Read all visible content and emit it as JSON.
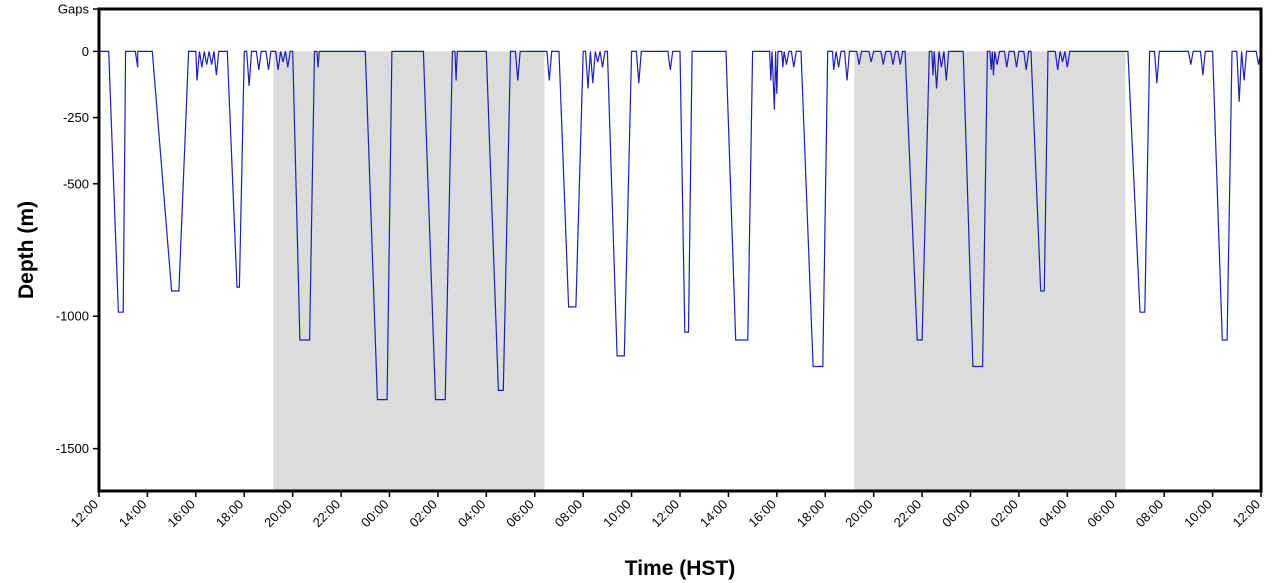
{
  "chart_data": {
    "type": "line",
    "title": "",
    "xlabel": "Time (HST)",
    "ylabel": "Depth (m)",
    "x_unit": "elapsed hours from 12:00 on day 1",
    "xlim": [
      0,
      48
    ],
    "ylim": [
      -1660,
      160
    ],
    "grid": false,
    "legend": "none",
    "x_tick_labels": [
      "12:00",
      "14:00",
      "16:00",
      "18:00",
      "20:00",
      "22:00",
      "00:00",
      "02:00",
      "04:00",
      "06:00",
      "08:00",
      "10:00",
      "12:00",
      "14:00",
      "16:00",
      "18:00",
      "20:00",
      "22:00",
      "00:00",
      "02:00",
      "04:00",
      "06:00",
      "08:00",
      "10:00",
      "12:00"
    ],
    "y_ticks": [
      {
        "label": "Gaps",
        "value": 160
      },
      {
        "label": "0",
        "value": 0
      },
      {
        "label": "-250",
        "value": -250
      },
      {
        "label": "-500",
        "value": -500
      },
      {
        "label": "-1000",
        "value": -1000
      },
      {
        "label": "-1500",
        "value": -1500
      }
    ],
    "night_shading": [
      [
        7.2,
        18.4
      ],
      [
        31.2,
        42.4
      ]
    ],
    "colors": {
      "line": "#1f1fb4",
      "shading": "#dcdcdc",
      "frame": "#000000"
    },
    "series": [
      {
        "values": [
          [
            0.0,
            0
          ],
          [
            0.4,
            0
          ],
          [
            0.8,
            -985
          ],
          [
            1.0,
            -985
          ],
          [
            1.1,
            0
          ],
          [
            1.5,
            0
          ],
          [
            1.6,
            -60
          ],
          [
            1.6,
            0
          ],
          [
            2.2,
            0
          ],
          [
            3.0,
            -905
          ],
          [
            3.3,
            -905
          ],
          [
            3.7,
            0
          ],
          [
            4.0,
            0
          ],
          [
            4.05,
            -110
          ],
          [
            4.15,
            0
          ],
          [
            4.25,
            -60
          ],
          [
            4.35,
            0
          ],
          [
            4.45,
            -50
          ],
          [
            4.55,
            0
          ],
          [
            4.65,
            -50
          ],
          [
            4.75,
            0
          ],
          [
            4.85,
            -90
          ],
          [
            4.95,
            0
          ],
          [
            5.3,
            0
          ],
          [
            5.7,
            -890
          ],
          [
            5.8,
            -890
          ],
          [
            6.0,
            0
          ],
          [
            6.1,
            0
          ],
          [
            6.2,
            -130
          ],
          [
            6.3,
            0
          ],
          [
            6.5,
            0
          ],
          [
            6.6,
            -70
          ],
          [
            6.7,
            0
          ],
          [
            6.9,
            0
          ],
          [
            7.0,
            -70
          ],
          [
            7.1,
            0
          ],
          [
            7.3,
            0
          ],
          [
            7.4,
            -70
          ],
          [
            7.5,
            0
          ],
          [
            7.6,
            -40
          ],
          [
            7.7,
            0
          ],
          [
            7.8,
            -60
          ],
          [
            7.9,
            0
          ],
          [
            8.0,
            0
          ],
          [
            8.3,
            -1090
          ],
          [
            8.7,
            -1090
          ],
          [
            8.9,
            0
          ],
          [
            9.0,
            0
          ],
          [
            9.05,
            -60
          ],
          [
            9.1,
            0
          ],
          [
            11.0,
            0
          ],
          [
            11.5,
            -1315
          ],
          [
            11.9,
            -1315
          ],
          [
            12.1,
            0
          ],
          [
            13.4,
            0
          ],
          [
            13.9,
            -1315
          ],
          [
            14.3,
            -1315
          ],
          [
            14.6,
            0
          ],
          [
            14.7,
            0
          ],
          [
            14.75,
            -110
          ],
          [
            14.8,
            0
          ],
          [
            16.0,
            0
          ],
          [
            16.5,
            -1280
          ],
          [
            16.7,
            -1280
          ],
          [
            17.0,
            0
          ],
          [
            17.2,
            0
          ],
          [
            17.3,
            -110
          ],
          [
            17.4,
            0
          ],
          [
            18.3,
            0
          ],
          [
            18.5,
            0
          ],
          [
            18.6,
            -110
          ],
          [
            18.7,
            0
          ],
          [
            19.0,
            0
          ],
          [
            19.4,
            -965
          ],
          [
            19.7,
            -965
          ],
          [
            20.0,
            0
          ],
          [
            20.1,
            0
          ],
          [
            20.2,
            -140
          ],
          [
            20.3,
            0
          ],
          [
            20.4,
            -120
          ],
          [
            20.5,
            0
          ],
          [
            20.6,
            -40
          ],
          [
            20.7,
            0
          ],
          [
            20.8,
            -60
          ],
          [
            20.9,
            0
          ],
          [
            21.0,
            0
          ],
          [
            21.4,
            -1150
          ],
          [
            21.7,
            -1150
          ],
          [
            22.0,
            0
          ],
          [
            22.2,
            0
          ],
          [
            22.3,
            -120
          ],
          [
            22.4,
            0
          ],
          [
            23.5,
            0
          ],
          [
            23.6,
            -70
          ],
          [
            23.7,
            0
          ],
          [
            24.0,
            0
          ],
          [
            24.2,
            -1060
          ],
          [
            24.35,
            -1060
          ],
          [
            24.5,
            0
          ],
          [
            25.6,
            0
          ],
          [
            25.9,
            0
          ],
          [
            26.3,
            -1090
          ],
          [
            26.8,
            -1090
          ],
          [
            27.0,
            0
          ],
          [
            27.7,
            0
          ],
          [
            27.75,
            -110
          ],
          [
            27.8,
            0
          ],
          [
            27.9,
            -220
          ],
          [
            27.95,
            0
          ],
          [
            28.0,
            -160
          ],
          [
            28.05,
            0
          ],
          [
            28.2,
            0
          ],
          [
            28.25,
            -60
          ],
          [
            28.3,
            0
          ],
          [
            28.4,
            -50
          ],
          [
            28.5,
            0
          ],
          [
            28.6,
            0
          ],
          [
            28.7,
            -60
          ],
          [
            28.8,
            0
          ],
          [
            29.0,
            0
          ],
          [
            29.5,
            -1190
          ],
          [
            29.9,
            -1190
          ],
          [
            30.1,
            0
          ],
          [
            30.3,
            0
          ],
          [
            30.35,
            -70
          ],
          [
            30.45,
            0
          ],
          [
            30.55,
            -60
          ],
          [
            30.65,
            0
          ],
          [
            30.8,
            0
          ],
          [
            30.9,
            -110
          ],
          [
            31.0,
            0
          ],
          [
            31.3,
            0
          ],
          [
            31.4,
            -50
          ],
          [
            31.5,
            0
          ],
          [
            31.8,
            0
          ],
          [
            31.9,
            -40
          ],
          [
            32.0,
            0
          ],
          [
            32.3,
            0
          ],
          [
            32.4,
            -50
          ],
          [
            32.5,
            0
          ],
          [
            32.7,
            0
          ],
          [
            32.8,
            -50
          ],
          [
            32.9,
            0
          ],
          [
            33.0,
            0
          ],
          [
            33.1,
            -50
          ],
          [
            33.2,
            0
          ],
          [
            33.3,
            0
          ],
          [
            33.8,
            -1090
          ],
          [
            34.0,
            -1090
          ],
          [
            34.3,
            0
          ],
          [
            34.4,
            0
          ],
          [
            34.45,
            -90
          ],
          [
            34.5,
            0
          ],
          [
            34.6,
            -140
          ],
          [
            34.7,
            0
          ],
          [
            34.8,
            -60
          ],
          [
            34.9,
            0
          ],
          [
            35.0,
            -110
          ],
          [
            35.1,
            0
          ],
          [
            35.4,
            0
          ],
          [
            35.7,
            0
          ],
          [
            36.1,
            -1190
          ],
          [
            36.5,
            -1190
          ],
          [
            36.7,
            0
          ],
          [
            36.8,
            0
          ],
          [
            36.85,
            -70
          ],
          [
            36.9,
            0
          ],
          [
            36.95,
            -90
          ],
          [
            37.0,
            0
          ],
          [
            37.1,
            -50
          ],
          [
            37.2,
            0
          ],
          [
            37.4,
            0
          ],
          [
            37.5,
            -60
          ],
          [
            37.6,
            0
          ],
          [
            37.8,
            0
          ],
          [
            37.9,
            -60
          ],
          [
            38.0,
            0
          ],
          [
            38.2,
            0
          ],
          [
            38.3,
            -70
          ],
          [
            38.4,
            0
          ],
          [
            38.5,
            0
          ],
          [
            38.9,
            -905
          ],
          [
            39.05,
            -905
          ],
          [
            39.2,
            0
          ],
          [
            39.5,
            0
          ],
          [
            39.6,
            -70
          ],
          [
            39.7,
            0
          ],
          [
            39.8,
            -40
          ],
          [
            39.9,
            0
          ],
          [
            40.0,
            -60
          ],
          [
            40.1,
            0
          ],
          [
            42.5,
            0
          ],
          [
            43.0,
            -985
          ],
          [
            43.2,
            -985
          ],
          [
            43.4,
            0
          ],
          [
            43.6,
            0
          ],
          [
            43.7,
            -120
          ],
          [
            43.8,
            0
          ],
          [
            45.0,
            0
          ],
          [
            45.1,
            -50
          ],
          [
            45.2,
            0
          ],
          [
            45.5,
            0
          ],
          [
            45.6,
            -90
          ],
          [
            45.7,
            0
          ],
          [
            46.0,
            0
          ],
          [
            46.4,
            -1090
          ],
          [
            46.6,
            -1090
          ],
          [
            46.8,
            0
          ],
          [
            47.0,
            0
          ],
          [
            47.1,
            -190
          ],
          [
            47.2,
            0
          ],
          [
            47.3,
            -110
          ],
          [
            47.4,
            0
          ],
          [
            47.8,
            0
          ],
          [
            47.9,
            -50
          ],
          [
            48.0,
            0
          ]
        ]
      }
    ]
  }
}
